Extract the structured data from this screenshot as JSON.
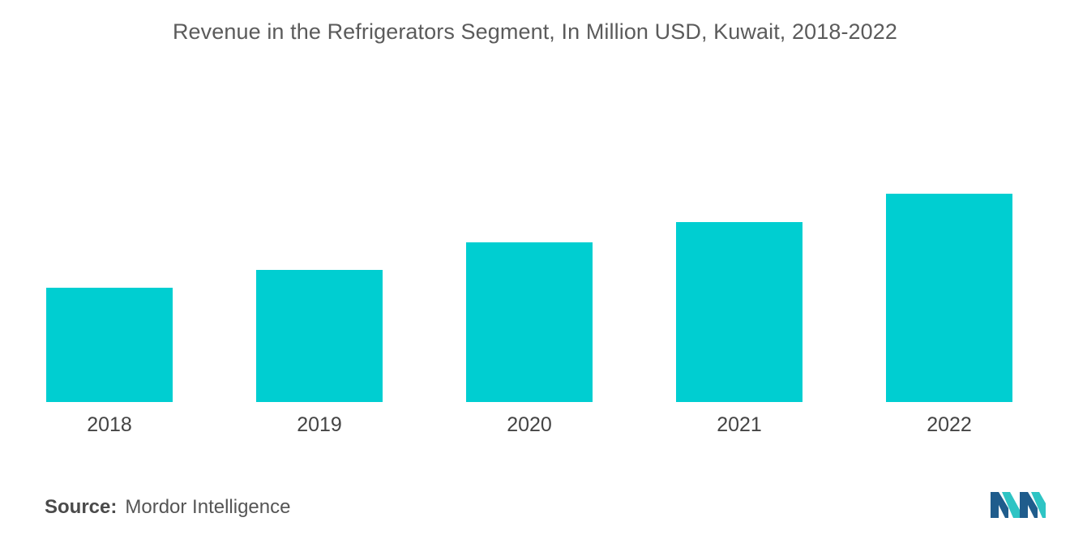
{
  "chart_data": {
    "type": "bar",
    "title": "Revenue in the Refrigerators Segment, In Million USD, Kuwait, 2018-2022",
    "categories": [
      "2018",
      "2019",
      "2020",
      "2021",
      "2022"
    ],
    "values": [
      141,
      163,
      197,
      222,
      257
    ],
    "ylim": [
      0,
      300
    ],
    "xlabel": "",
    "ylabel": "",
    "grid": false,
    "legend": "none",
    "bar_color": "#00CED1"
  },
  "source": {
    "label": "Source:",
    "text": "Mordor Intelligence"
  },
  "logo": {
    "icon": "mordor-intelligence-logo-icon",
    "colors": [
      "#1F5C8C",
      "#2EC4C4"
    ]
  }
}
